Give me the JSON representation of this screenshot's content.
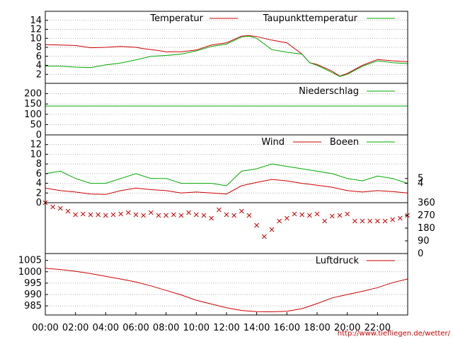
{
  "chart_data": [
    {
      "type": "line",
      "panel": "temperature",
      "ylim": [
        0,
        16
      ],
      "yticks": [
        "2",
        "4",
        "6",
        "8",
        "10",
        "12",
        "14"
      ],
      "grid": true,
      "legend_placement": "top",
      "series": [
        {
          "name": "Temperatur",
          "color": "#cc0000",
          "x": [
            "00:00",
            "01:00",
            "02:00",
            "03:00",
            "04:00",
            "05:00",
            "06:00",
            "06:30",
            "07:00",
            "07:30",
            "08:00",
            "09:00",
            "10:00",
            "11:00",
            "12:00",
            "13:00",
            "13:30",
            "14:00",
            "14:30",
            "15:00",
            "16:00",
            "17:00",
            "17:30",
            "18:00",
            "19:00",
            "19:30",
            "20:00",
            "21:00",
            "22:00",
            "23:00",
            "23:59"
          ],
          "values": [
            8.6,
            8.5,
            8.4,
            7.9,
            8.0,
            8.2,
            8.0,
            7.7,
            7.5,
            7.3,
            7.0,
            7.0,
            7.4,
            8.5,
            9.0,
            10.5,
            10.6,
            10.4,
            10.0,
            9.6,
            9.0,
            6.5,
            4.6,
            4.2,
            2.7,
            1.6,
            2.2,
            4.0,
            5.3,
            5.0,
            4.8
          ]
        },
        {
          "name": "Taupunkttemperatur",
          "color": "#00aa00",
          "x": [
            "00:00",
            "01:00",
            "02:00",
            "03:00",
            "04:00",
            "05:00",
            "06:00",
            "07:00",
            "08:00",
            "09:00",
            "10:00",
            "11:00",
            "12:00",
            "13:00",
            "13:30",
            "14:00",
            "15:00",
            "16:00",
            "17:00",
            "17:30",
            "18:00",
            "19:00",
            "19:30",
            "20:00",
            "21:00",
            "22:00",
            "23:00",
            "23:59"
          ],
          "values": [
            3.8,
            3.8,
            3.6,
            3.5,
            4.1,
            4.5,
            5.2,
            6.0,
            6.2,
            6.5,
            7.2,
            8.2,
            8.7,
            10.3,
            10.5,
            10.0,
            7.5,
            6.9,
            6.5,
            4.6,
            4.0,
            2.4,
            1.5,
            2.0,
            3.8,
            5.0,
            4.6,
            4.4
          ]
        }
      ]
    },
    {
      "type": "line",
      "panel": "precipitation",
      "ylim": [
        0,
        250
      ],
      "yticks": [
        "0",
        "50",
        "100",
        "150",
        "200"
      ],
      "grid": true,
      "series": [
        {
          "name": "Niederschlag",
          "color": "#00aa00",
          "x": [
            "00:00",
            "23:59"
          ],
          "values": [
            140,
            140
          ]
        }
      ]
    },
    {
      "type": "line",
      "panel": "wind",
      "ylim": [
        0,
        14
      ],
      "yticks": [
        "0",
        "2",
        "4",
        "6",
        "8",
        "10",
        "12"
      ],
      "yticks_right": [
        "4",
        "5"
      ],
      "grid": true,
      "series": [
        {
          "name": "Wind",
          "color": "#cc0000",
          "x": [
            "00:00",
            "01:00",
            "02:00",
            "03:00",
            "04:00",
            "05:00",
            "06:00",
            "07:00",
            "08:00",
            "09:00",
            "10:00",
            "11:00",
            "12:00",
            "13:00",
            "14:00",
            "15:00",
            "16:00",
            "17:00",
            "18:00",
            "19:00",
            "20:00",
            "21:00",
            "22:00",
            "23:00",
            "23:59"
          ],
          "values": [
            3.0,
            2.5,
            2.2,
            1.8,
            1.7,
            2.5,
            3.0,
            2.7,
            2.5,
            2.0,
            2.2,
            2.0,
            1.8,
            3.5,
            4.2,
            4.8,
            4.5,
            4.0,
            3.6,
            3.2,
            2.5,
            2.2,
            2.5,
            2.3,
            2.0
          ]
        },
        {
          "name": "Boeen",
          "color": "#00aa00",
          "x": [
            "00:00",
            "01:00",
            "02:00",
            "03:00",
            "04:00",
            "05:00",
            "06:00",
            "07:00",
            "08:00",
            "09:00",
            "10:00",
            "11:00",
            "12:00",
            "13:00",
            "14:00",
            "15:00",
            "16:00",
            "17:00",
            "18:00",
            "19:00",
            "20:00",
            "21:00",
            "22:00",
            "23:00",
            "23:59"
          ],
          "values": [
            6.0,
            6.5,
            5.0,
            4.0,
            4.0,
            5.0,
            6.0,
            5.0,
            5.0,
            4.0,
            4.0,
            4.0,
            3.5,
            6.5,
            7.0,
            8.0,
            7.5,
            7.0,
            6.5,
            6.0,
            5.0,
            4.5,
            5.5,
            5.0,
            4.0
          ]
        }
      ]
    },
    {
      "type": "scatter",
      "panel": "wind-direction",
      "ylim": [
        0,
        360
      ],
      "yticks_right": [
        "0",
        "90",
        "180",
        "270",
        "360"
      ],
      "marker": "x",
      "series": [
        {
          "color": "#cc0000",
          "x": [
            "00:00",
            "00:30",
            "01:00",
            "01:30",
            "02:00",
            "02:30",
            "03:00",
            "03:30",
            "04:00",
            "04:30",
            "05:00",
            "05:30",
            "06:00",
            "06:30",
            "07:00",
            "07:30",
            "08:00",
            "08:30",
            "09:00",
            "09:30",
            "10:00",
            "10:30",
            "11:00",
            "11:30",
            "12:00",
            "12:30",
            "13:00",
            "13:30",
            "14:00",
            "14:30",
            "15:00",
            "15:30",
            "16:00",
            "16:30",
            "17:00",
            "17:30",
            "18:00",
            "18:30",
            "19:00",
            "19:30",
            "20:00",
            "20:30",
            "21:00",
            "21:30",
            "22:00",
            "22:30",
            "23:00",
            "23:30",
            "23:59"
          ],
          "values": [
            360,
            330,
            320,
            300,
            275,
            280,
            275,
            275,
            270,
            275,
            280,
            290,
            275,
            270,
            290,
            270,
            270,
            275,
            270,
            290,
            275,
            270,
            250,
            310,
            275,
            270,
            300,
            270,
            200,
            120,
            170,
            230,
            250,
            280,
            275,
            270,
            280,
            230,
            265,
            270,
            280,
            230,
            230,
            230,
            230,
            230,
            240,
            250,
            270
          ]
        }
      ]
    },
    {
      "type": "line",
      "panel": "pressure",
      "ylim": [
        981,
        1008
      ],
      "yticks": [
        "985",
        "990",
        "995",
        "1000",
        "1005"
      ],
      "grid": true,
      "xticks": [
        "00:00",
        "02:00",
        "04:00",
        "06:00",
        "08:00",
        "10:00",
        "12:00",
        "14:00",
        "16:00",
        "18:00",
        "20:00",
        "22:00"
      ],
      "series": [
        {
          "name": "Luftdruck",
          "color": "#cc0000",
          "x": [
            "00:00",
            "01:00",
            "02:00",
            "03:00",
            "04:00",
            "05:00",
            "06:00",
            "07:00",
            "08:00",
            "09:00",
            "10:00",
            "11:00",
            "12:00",
            "13:00",
            "14:00",
            "15:00",
            "16:00",
            "17:00",
            "18:00",
            "19:00",
            "20:00",
            "21:00",
            "22:00",
            "23:00",
            "23:59"
          ],
          "values": [
            1001.5,
            1001.0,
            1000.2,
            999.2,
            998.0,
            996.8,
            995.5,
            993.8,
            991.8,
            989.8,
            987.5,
            985.8,
            984.2,
            983.0,
            982.5,
            982.4,
            982.6,
            983.8,
            986.0,
            988.5,
            990.0,
            991.4,
            993.0,
            995.2,
            996.8
          ]
        }
      ]
    }
  ],
  "footer": {
    "url": "http://www.tiefliegen.de/wetter/"
  }
}
